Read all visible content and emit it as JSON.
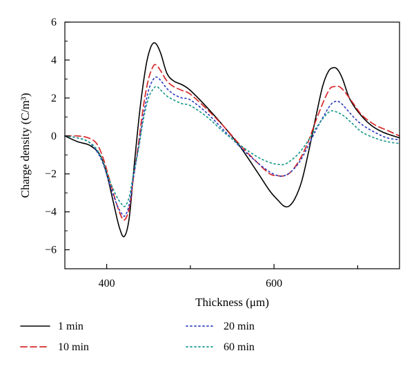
{
  "chart_data": {
    "type": "line",
    "xlabel": "Thickness (μm)",
    "ylabel": "Charge density (C/m³)",
    "xlim": [
      350,
      750
    ],
    "ylim": [
      -7,
      6
    ],
    "x_ticks_labeled": [
      400,
      600
    ],
    "x_ticks_minor": [
      500,
      700
    ],
    "y_ticks": [
      6,
      4,
      2,
      0,
      -2,
      -4,
      -6
    ],
    "y_tick_labels": [
      "6",
      "4",
      "2",
      "0",
      "−2",
      "−4",
      "−6"
    ],
    "grid": false,
    "legend_position": "bottom-left, below plot",
    "series": [
      {
        "name": "1 min",
        "color": "#000000",
        "style": "solid",
        "x": [
          350,
          365,
          380,
          392,
          400,
          408,
          415,
          421,
          427,
          433,
          440,
          447,
          452,
          456,
          460,
          465,
          472,
          480,
          490,
          500,
          520,
          540,
          560,
          580,
          595,
          605,
          612,
          618,
          625,
          633,
          641,
          650,
          658,
          665,
          671,
          676,
          682,
          690,
          700,
          715,
          730,
          750
        ],
        "y": [
          0.0,
          -0.3,
          -0.5,
          -1.0,
          -2.0,
          -3.5,
          -4.8,
          -5.3,
          -4.3,
          -1.5,
          1.5,
          3.7,
          4.6,
          4.9,
          4.8,
          4.3,
          3.3,
          2.9,
          2.7,
          2.4,
          1.5,
          0.5,
          -0.6,
          -1.9,
          -2.9,
          -3.4,
          -3.7,
          -3.7,
          -3.3,
          -2.4,
          -0.9,
          1.0,
          2.6,
          3.4,
          3.6,
          3.5,
          3.0,
          2.0,
          1.3,
          0.6,
          0.2,
          -0.1
        ]
      },
      {
        "name": "10 min",
        "color": "#d62728",
        "style": "dashed",
        "x": [
          350,
          365,
          378,
          388,
          396,
          404,
          412,
          418,
          422,
          427,
          432,
          438,
          444,
          450,
          456,
          460,
          465,
          472,
          480,
          490,
          500,
          520,
          540,
          560,
          580,
          595,
          605,
          612,
          620,
          630,
          640,
          650,
          660,
          667,
          672,
          678,
          685,
          695,
          705,
          720,
          735,
          750
        ],
        "y": [
          0.0,
          0.0,
          -0.1,
          -0.4,
          -1.2,
          -2.4,
          -3.6,
          -4.3,
          -4.4,
          -3.8,
          -2.2,
          -0.4,
          1.6,
          3.0,
          3.7,
          3.7,
          3.4,
          2.9,
          2.6,
          2.4,
          2.2,
          1.4,
          0.5,
          -0.5,
          -1.4,
          -2.0,
          -2.1,
          -2.1,
          -1.9,
          -1.3,
          -0.4,
          0.8,
          1.9,
          2.5,
          2.6,
          2.6,
          2.3,
          1.7,
          1.1,
          0.6,
          0.3,
          0.0
        ]
      },
      {
        "name": "20 min",
        "color": "#3040c0",
        "style": "dotted",
        "x": [
          350,
          365,
          378,
          388,
          396,
          404,
          412,
          418,
          422,
          427,
          432,
          438,
          444,
          450,
          456,
          460,
          465,
          472,
          480,
          490,
          500,
          520,
          540,
          560,
          580,
          595,
          605,
          612,
          620,
          630,
          640,
          650,
          660,
          667,
          672,
          678,
          685,
          695,
          705,
          720,
          735,
          750
        ],
        "y": [
          0.0,
          -0.1,
          -0.3,
          -0.8,
          -1.5,
          -2.6,
          -3.6,
          -4.1,
          -4.2,
          -3.6,
          -2.2,
          -0.6,
          1.1,
          2.4,
          3.0,
          3.1,
          2.9,
          2.5,
          2.2,
          2.0,
          1.9,
          1.2,
          0.3,
          -0.6,
          -1.4,
          -1.9,
          -2.1,
          -2.1,
          -1.9,
          -1.4,
          -0.6,
          0.3,
          1.1,
          1.6,
          1.8,
          1.8,
          1.5,
          1.0,
          0.6,
          0.2,
          -0.1,
          -0.2
        ]
      },
      {
        "name": "60 min",
        "color": "#1a9a8a",
        "style": "dotted",
        "x": [
          350,
          365,
          378,
          388,
          396,
          404,
          412,
          418,
          422,
          427,
          432,
          438,
          444,
          450,
          456,
          460,
          465,
          472,
          480,
          490,
          500,
          520,
          540,
          560,
          580,
          595,
          605,
          612,
          620,
          630,
          640,
          650,
          660,
          667,
          672,
          678,
          685,
          695,
          705,
          720,
          735,
          750
        ],
        "y": [
          0.0,
          -0.1,
          -0.3,
          -0.7,
          -1.4,
          -2.4,
          -3.2,
          -3.6,
          -3.7,
          -3.2,
          -2.0,
          -0.7,
          0.9,
          2.0,
          2.5,
          2.6,
          2.4,
          2.1,
          1.9,
          1.7,
          1.6,
          1.0,
          0.2,
          -0.5,
          -1.1,
          -1.4,
          -1.5,
          -1.5,
          -1.3,
          -0.9,
          -0.3,
          0.4,
          1.0,
          1.3,
          1.3,
          1.2,
          1.0,
          0.6,
          0.2,
          -0.1,
          -0.3,
          -0.4
        ]
      }
    ]
  }
}
